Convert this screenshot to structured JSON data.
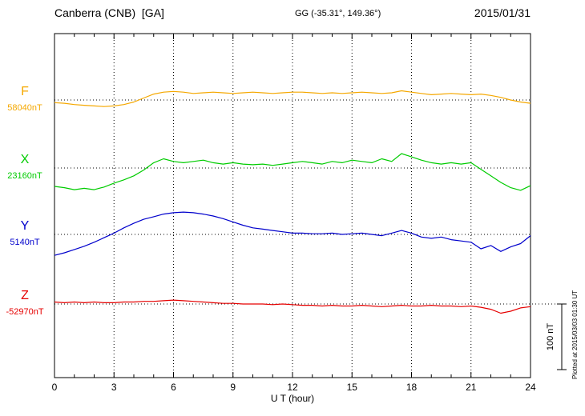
{
  "header": {
    "station": "Canberra (CNB)  [GA]",
    "coords": "GG (-35.31°, 149.36°)",
    "date": "2015/01/31"
  },
  "axis": {
    "xlabel": "U T (hour)",
    "xmin": 0,
    "xmax": 24,
    "ticks": [
      0,
      3,
      6,
      9,
      12,
      15,
      18,
      21,
      24
    ]
  },
  "scale_bar": {
    "label": "100 nT",
    "nT": 100
  },
  "side_note": "Plotted at 2015/03/03 01:30 UT",
  "chart_data": {
    "type": "line",
    "title": "Canberra (CNB) [GA] magnetogram 2015/01/31",
    "xlabel": "U T (hour)",
    "ylabel": "",
    "x_range": [
      0,
      24
    ],
    "x_step_hours": 0.5,
    "grid": "dotted vertical every 3 h, dotted horizontal at each series baseline",
    "legend_position": "left baseline labels",
    "amplitude_reference_nT": 100,
    "series": [
      {
        "name": "F",
        "color": "#f5a800",
        "baseline_label": "58040nT",
        "baseline_nT": 58040,
        "values_rel_nT": [
          -4,
          -5,
          -7,
          -8,
          -9,
          -10,
          -9,
          -7,
          -3,
          3,
          9,
          12,
          13,
          12,
          10,
          11,
          12,
          11,
          10,
          11,
          12,
          11,
          10,
          11,
          12,
          12,
          11,
          10,
          11,
          10,
          11,
          12,
          11,
          10,
          11,
          14,
          12,
          10,
          8,
          9,
          10,
          9,
          8,
          9,
          7,
          4,
          0,
          -3,
          -5
        ]
      },
      {
        "name": "X",
        "color": "#00cc00",
        "baseline_label": "23160nT",
        "baseline_nT": 23160,
        "values_rel_nT": [
          -28,
          -30,
          -33,
          -31,
          -33,
          -29,
          -23,
          -18,
          -12,
          -3,
          8,
          14,
          10,
          8,
          10,
          12,
          8,
          6,
          8,
          6,
          5,
          6,
          4,
          6,
          8,
          10,
          8,
          6,
          10,
          8,
          12,
          10,
          8,
          14,
          10,
          22,
          17,
          12,
          8,
          6,
          8,
          6,
          8,
          -2,
          -12,
          -22,
          -30,
          -34,
          -27
        ]
      },
      {
        "name": "Y",
        "color": "#0000cc",
        "baseline_label": "5140nT",
        "baseline_nT": 5140,
        "values_rel_nT": [
          -32,
          -28,
          -23,
          -18,
          -12,
          -5,
          2,
          10,
          17,
          23,
          27,
          31,
          33,
          34,
          33,
          31,
          28,
          24,
          19,
          14,
          10,
          8,
          6,
          4,
          2,
          2,
          1,
          1,
          2,
          0,
          1,
          2,
          0,
          -2,
          2,
          6,
          2,
          -4,
          -6,
          -4,
          -8,
          -10,
          -12,
          -22,
          -17,
          -26,
          -19,
          -14,
          -2
        ]
      },
      {
        "name": "Z",
        "color": "#e60000",
        "baseline_label": "-52970nT",
        "baseline_nT": -52970,
        "values_rel_nT": [
          3,
          2,
          3,
          2,
          3,
          2,
          2,
          3,
          3,
          4,
          4,
          5,
          6,
          5,
          4,
          3,
          2,
          1,
          1,
          0,
          0,
          0,
          -1,
          0,
          -1,
          -2,
          -2,
          -3,
          -2,
          -3,
          -3,
          -2,
          -3,
          -4,
          -3,
          -2,
          -3,
          -3,
          -2,
          -3,
          -3,
          -4,
          -3,
          -5,
          -8,
          -14,
          -11,
          -6,
          -4
        ]
      }
    ]
  }
}
